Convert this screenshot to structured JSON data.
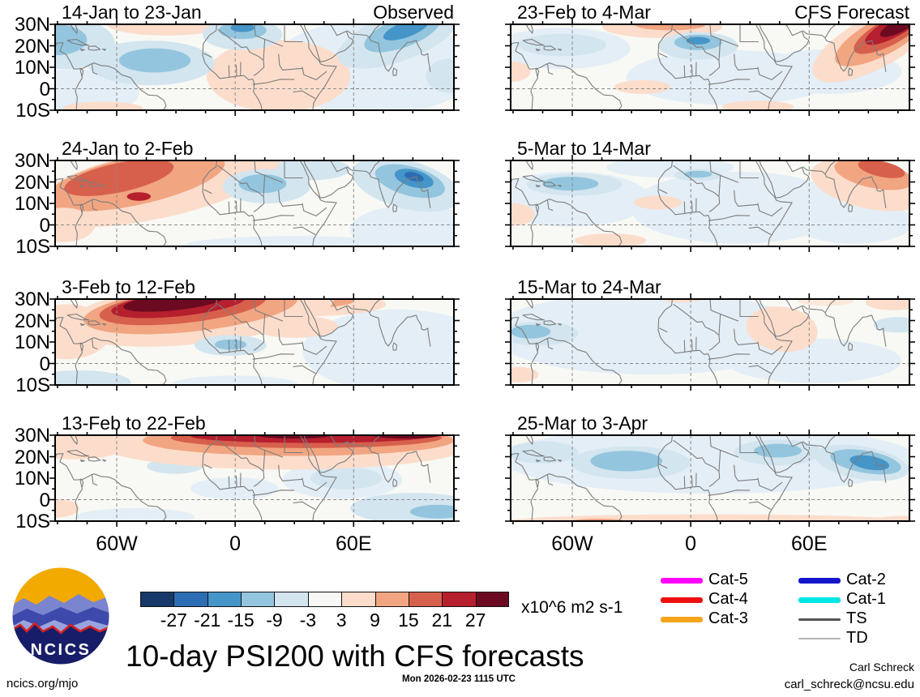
{
  "title": "10-day PSI200 with CFS forecasts",
  "logo": {
    "text": "NCICS"
  },
  "footer": {
    "left": "ncics.org/mjo",
    "center": "Mon 2026-02-23 1115 UTC",
    "right_name": "Carl Schreck",
    "right_email": "carl_schreck@ncsu.edu"
  },
  "legend": {
    "col1": [
      {
        "label": "Cat-5",
        "color": "#ff00ff",
        "thickness": 7
      },
      {
        "label": "Cat-4",
        "color": "#ee1111",
        "thickness": 7
      },
      {
        "label": "Cat-3",
        "color": "#f5a41c",
        "thickness": 7
      }
    ],
    "col2": [
      {
        "label": "Cat-2",
        "color": "#1515cc",
        "thickness": 7
      },
      {
        "label": "Cat-1",
        "color": "#00e5e5",
        "thickness": 7
      },
      {
        "label": "TS",
        "color": "#555555",
        "thickness": 3
      },
      {
        "label": "TD",
        "color": "#b5b5b5",
        "thickness": 1.5
      }
    ]
  },
  "chart_data": {
    "type": "heatmap",
    "subtype": "filled-contour anomaly maps (streamfunction)",
    "variable": "PSI200 10-day mean anomaly",
    "units": "x10^6 m2 s-1",
    "colorbar_levels": [
      -27,
      -21,
      -15,
      -9,
      -3,
      3,
      9,
      15,
      21,
      27
    ],
    "colorbar_values_text": [
      "-27",
      "-21",
      "-15",
      "-9",
      "-3",
      "3",
      "9",
      "15",
      "21",
      "27"
    ],
    "colorbar_colors": [
      "#17396a",
      "#2d6db3",
      "#4695c8",
      "#93c5df",
      "#d3e6f0",
      "#f7f7f5",
      "#fcdccb",
      "#f2a581",
      "#d7604d",
      "#b51f2e",
      "#6c0a21"
    ],
    "palette": {
      "w_blue": "#e3eef6",
      "b1": "#d3e6f0",
      "b2": "#93c5df",
      "b3": "#4695c8",
      "b4": "#2d6db3",
      "b5": "#17396a",
      "w_warm": "#fbe9dc",
      "r1": "#fcdccb",
      "r2": "#f2a581",
      "r3": "#d7604d",
      "r4": "#b51f2e",
      "r5": "#6c0a21"
    },
    "axes": {
      "lat_labels": [
        "30N",
        "20N",
        "10N",
        "0",
        "10S"
      ],
      "lon_labels": [
        "60W",
        "0",
        "60E"
      ],
      "lon_label_positions": [
        -60,
        0,
        60
      ],
      "lat_range": [
        "30N",
        "10S"
      ],
      "grid": "dashed gridlines at equator and 60W/0/60E"
    },
    "columns": [
      {
        "header_corner": "Observed"
      },
      {
        "header_corner": "CFS Forecast"
      }
    ],
    "panels": [
      {
        "col": 0,
        "row": 0,
        "title": "14-Jan to 23-Jan",
        "corner": "Observed",
        "summary": "Weak negative anomalies W Atlantic and strong negative over N India; weak positive band subtropical Atlantic and Sahel",
        "blobs": [
          [
            "w_blue",
            80,
            50,
            26,
            55,
            0
          ],
          [
            "w_blue",
            5,
            80,
            16,
            28,
            0
          ],
          [
            "r1",
            28,
            0,
            15,
            13,
            0
          ],
          [
            "r1",
            56,
            60,
            18,
            42,
            0
          ],
          [
            "r1",
            12,
            98,
            10,
            8,
            0
          ],
          [
            "b1",
            24,
            45,
            16,
            26,
            0
          ],
          [
            "b2",
            25,
            42,
            9,
            14,
            0
          ],
          [
            "b1",
            2,
            22,
            13,
            30,
            0
          ],
          [
            "b2",
            0,
            18,
            8,
            18,
            0
          ],
          [
            "b1",
            47,
            12,
            10,
            18,
            0
          ],
          [
            "b2",
            47,
            7,
            6,
            10,
            0
          ],
          [
            "b3",
            47,
            4,
            3,
            5,
            0
          ],
          [
            "b1",
            86,
            15,
            16,
            28,
            -20
          ],
          [
            "b2",
            87,
            10,
            10,
            17,
            -20
          ],
          [
            "b3",
            88,
            6,
            6,
            9,
            -20
          ],
          [
            "b1",
            99,
            60,
            6,
            20,
            0
          ]
        ]
      },
      {
        "col": 0,
        "row": 1,
        "title": "24-Jan to 2-Feb",
        "corner": "",
        "summary": "Strong positive anomaly over Caribbean/W Atlantic (+21), strong negative over India (-21), negative W Africa",
        "blobs": [
          [
            "w_blue",
            90,
            80,
            16,
            28,
            0
          ],
          [
            "w_blue",
            60,
            100,
            28,
            12,
            0
          ],
          [
            "b1",
            64,
            10,
            10,
            13,
            0
          ],
          [
            "r1",
            25,
            28,
            32,
            40,
            -12
          ],
          [
            "r2",
            20,
            24,
            23,
            28,
            -12
          ],
          [
            "r3",
            16,
            20,
            14,
            17,
            -12
          ],
          [
            "r4",
            21,
            42,
            3,
            5,
            0
          ],
          [
            "r1",
            2,
            75,
            8,
            20,
            0
          ],
          [
            "b1",
            53,
            30,
            11,
            20,
            0
          ],
          [
            "b2",
            52,
            27,
            6,
            11,
            0
          ],
          [
            "b1",
            88,
            28,
            14,
            28,
            15
          ],
          [
            "b2",
            89,
            24,
            9,
            17,
            15
          ],
          [
            "b3",
            90,
            21,
            5,
            10,
            15
          ],
          [
            "b4",
            90,
            19,
            2.5,
            5,
            15
          ]
        ]
      },
      {
        "col": 0,
        "row": 2,
        "title": "3-Feb to 12-Feb",
        "corner": "",
        "summary": "Very strong positive anomaly (>27) over subtropical N Atlantic / NW Africa; weak negatives near Senegal and in south",
        "blobs": [
          [
            "w_blue",
            86,
            60,
            24,
            48,
            0
          ],
          [
            "b1",
            6,
            97,
            13,
            14,
            0
          ],
          [
            "w_blue",
            45,
            100,
            16,
            11,
            0
          ],
          [
            "r1",
            3,
            38,
            11,
            32,
            0
          ],
          [
            "r1",
            63,
            6,
            20,
            14,
            0
          ],
          [
            "r2",
            60,
            2,
            15,
            9,
            0
          ],
          [
            "r1",
            36,
            16,
            34,
            36,
            -6
          ],
          [
            "r2",
            34,
            12,
            27,
            26,
            -6
          ],
          [
            "r3",
            32,
            9,
            21,
            19,
            -6
          ],
          [
            "r4",
            31,
            6,
            17,
            14,
            -6
          ],
          [
            "r5",
            30,
            3,
            13,
            10,
            -6
          ],
          [
            "r1",
            60,
            32,
            11,
            13,
            0
          ],
          [
            "b1",
            44,
            54,
            9,
            12,
            0
          ],
          [
            "b2",
            44,
            53,
            4,
            6,
            0
          ]
        ]
      },
      {
        "col": 0,
        "row": 3,
        "title": "13-Feb to 22-Feb",
        "corner": "",
        "summary": "Very strong positive band (>27) along 25-30N across N Africa to S Asia; weak negatives near equator",
        "blobs": [
          [
            "b1",
            30,
            36,
            7,
            9,
            0
          ],
          [
            "w_blue",
            45,
            62,
            11,
            13,
            0
          ],
          [
            "w_blue",
            72,
            52,
            15,
            22,
            0
          ],
          [
            "b1",
            73,
            50,
            9,
            13,
            0
          ],
          [
            "b1",
            90,
            85,
            16,
            18,
            0
          ],
          [
            "b2",
            96,
            89,
            7,
            8,
            0
          ],
          [
            "w_blue",
            20,
            95,
            15,
            10,
            0
          ],
          [
            "r1",
            5,
            12,
            13,
            16,
            0
          ],
          [
            "r1",
            0,
            85,
            6,
            11,
            0
          ],
          [
            "r1",
            58,
            12,
            46,
            28,
            0
          ],
          [
            "r2",
            61,
            6,
            39,
            18,
            0
          ],
          [
            "r3",
            63,
            3,
            34,
            12,
            0
          ],
          [
            "r4",
            64,
            1,
            30,
            8,
            0
          ],
          [
            "r5",
            60,
            -1,
            10,
            5,
            0
          ],
          [
            "r5",
            88,
            -1,
            9,
            5,
            0
          ]
        ]
      },
      {
        "col": 1,
        "row": 0,
        "title": "23-Feb to 4-Mar",
        "corner": "CFS Forecast",
        "summary": "Very strong positive anomaly (>27) over N India/Himalayas; negative over Mauritania; weak negatives W Atlantic",
        "blobs": [
          [
            "w_blue",
            13,
            28,
            17,
            24,
            0
          ],
          [
            "b1",
            13,
            24,
            11,
            13,
            0
          ],
          [
            "w_blue",
            55,
            62,
            26,
            32,
            0
          ],
          [
            "w_blue",
            80,
            55,
            18,
            26,
            0
          ],
          [
            "r1",
            38,
            3,
            15,
            13,
            0
          ],
          [
            "r2",
            40,
            0,
            9,
            7,
            0
          ],
          [
            "r1",
            0,
            55,
            5,
            12,
            0
          ],
          [
            "r1",
            33,
            73,
            7,
            8,
            0
          ],
          [
            "r1",
            62,
            96,
            9,
            7,
            0
          ],
          [
            "r1",
            91,
            22,
            17,
            30,
            -28
          ],
          [
            "r2",
            93,
            15,
            13,
            21,
            -28
          ],
          [
            "r3",
            95,
            9,
            10,
            15,
            -28
          ],
          [
            "r4",
            96,
            4,
            8,
            11,
            -28
          ],
          [
            "r5",
            98,
            0,
            6,
            8,
            -28
          ],
          [
            "b1",
            47,
            25,
            10,
            16,
            0
          ],
          [
            "b2",
            47,
            21,
            6,
            9,
            0
          ],
          [
            "b3",
            47,
            19,
            3,
            4.5,
            0
          ]
        ]
      },
      {
        "col": 1,
        "row": 1,
        "title": "5-Mar to 14-Mar",
        "corner": "",
        "summary": "Weak negative anomalies over Caribbean and Africa; moderate positive over N India",
        "blobs": [
          [
            "w_blue",
            15,
            45,
            20,
            32,
            0
          ],
          [
            "w_blue",
            57,
            55,
            27,
            42,
            0
          ],
          [
            "w_blue",
            86,
            72,
            15,
            25,
            0
          ],
          [
            "w_blue",
            40,
            8,
            16,
            12,
            0
          ],
          [
            "b1",
            16,
            28,
            12,
            13,
            0
          ],
          [
            "b2",
            15,
            27,
            7,
            8,
            0
          ],
          [
            "b1",
            47,
            17,
            6,
            7,
            0
          ],
          [
            "b2",
            47,
            16,
            3.5,
            4,
            0
          ],
          [
            "r1",
            90,
            28,
            15,
            28,
            12
          ],
          [
            "r2",
            91,
            16,
            10,
            16,
            12
          ],
          [
            "r3",
            93,
            10,
            6,
            9,
            12
          ],
          [
            "r1",
            37,
            49,
            6,
            8,
            0
          ],
          [
            "r1",
            1,
            63,
            5,
            13,
            0
          ],
          [
            "r1",
            25,
            93,
            9,
            8,
            0
          ]
        ]
      },
      {
        "col": 1,
        "row": 2,
        "title": "15-Mar to 24-Mar",
        "corner": "",
        "summary": "Broad weak negative anomalies; small negative core near Central America; weak positive near Horn of Africa",
        "blobs": [
          [
            "w_blue",
            35,
            40,
            40,
            48,
            0
          ],
          [
            "w_blue",
            76,
            72,
            22,
            26,
            0
          ],
          [
            "b1",
            97,
            30,
            6,
            9,
            0
          ],
          [
            "b1",
            7,
            40,
            10,
            14,
            0
          ],
          [
            "b2",
            5,
            38,
            5,
            8,
            0
          ],
          [
            "r1",
            68,
            35,
            9,
            26,
            8
          ],
          [
            "r1",
            96,
            4,
            7,
            9,
            0
          ],
          [
            "r1",
            2,
            88,
            5,
            9,
            0
          ],
          [
            "r1",
            43,
            0,
            5,
            4,
            0
          ],
          [
            "w_warm",
            79,
            2,
            7,
            6,
            0
          ]
        ]
      },
      {
        "col": 1,
        "row": 3,
        "title": "25-Mar to 3-Apr",
        "corner": "",
        "summary": "Broad weak-moderate negative anomalies north of equator, strongest over India; weak positive band south of equator",
        "blobs": [
          [
            "w_blue",
            50,
            28,
            52,
            40,
            0
          ],
          [
            "b1",
            30,
            32,
            15,
            19,
            0
          ],
          [
            "b2",
            29,
            30,
            9,
            12,
            0
          ],
          [
            "b1",
            67,
            20,
            11,
            15,
            0
          ],
          [
            "b2",
            67,
            18,
            6,
            8,
            0
          ],
          [
            "b1",
            8,
            20,
            9,
            13,
            0
          ],
          [
            "b1",
            88,
            32,
            12,
            19,
            10
          ],
          [
            "b2",
            89,
            31,
            9,
            13,
            10
          ],
          [
            "b3",
            90,
            32,
            5,
            8,
            10
          ],
          [
            "r1",
            50,
            101,
            52,
            9,
            0
          ],
          [
            "r2",
            22,
            102,
            8,
            5,
            0
          ],
          [
            "r2",
            55,
            103,
            6,
            4,
            0
          ],
          [
            "r1",
            98,
            100,
            7,
            6,
            0
          ]
        ]
      }
    ]
  }
}
